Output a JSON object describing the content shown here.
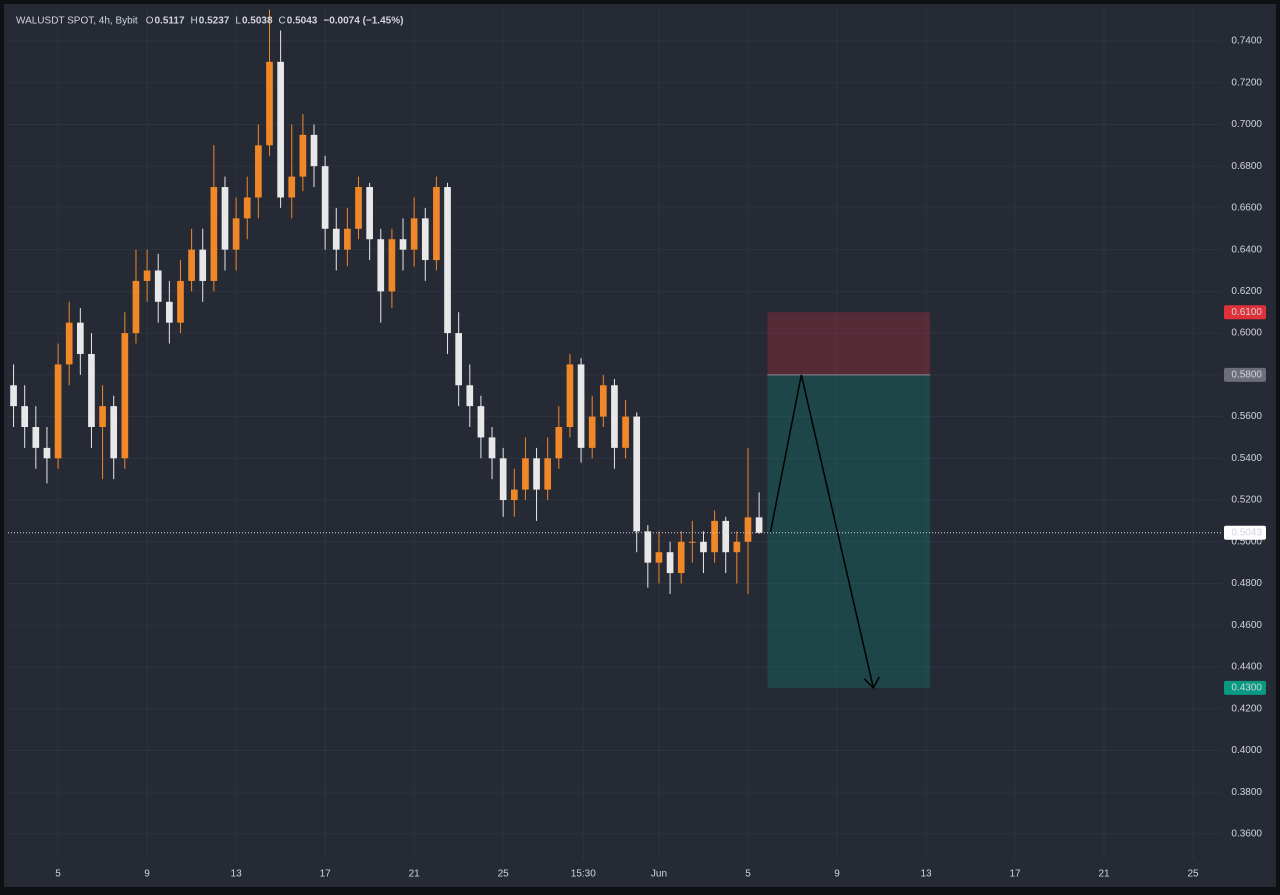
{
  "chart_data": {
    "type": "candlestick",
    "title": "WALUSDT SPOT, 4h, Bybit",
    "header": [
      {
        "label": "O",
        "value": "0.5117"
      },
      {
        "label": "H",
        "value": "0.5237"
      },
      {
        "label": "L",
        "value": "0.5038"
      },
      {
        "label": "C",
        "value": "0.5043"
      }
    ],
    "change": "−0.0074 (−1.45%)",
    "up_color": "#f0882a",
    "down_color": "#e8e8e8",
    "x": [
      3,
      3.5,
      4,
      4.5,
      5,
      5.5,
      6,
      6.5,
      7,
      7.5,
      8,
      8.5,
      9,
      9.5,
      10,
      10.5,
      11,
      11.5,
      12,
      12.5,
      13,
      13.5,
      14,
      14.5,
      15,
      15.5,
      16,
      16.5,
      17,
      17.5,
      18,
      18.5,
      19,
      19.5,
      20,
      20.5,
      21,
      21.5,
      22,
      22.5,
      23,
      23.5,
      24,
      24.5,
      25,
      25.5,
      26,
      26.5,
      27,
      27.5,
      28,
      28.5,
      29,
      29.5,
      30,
      30.5,
      31,
      31.5,
      32,
      32.5,
      33,
      33.5,
      34,
      34.5,
      35,
      35.5,
      36,
      36.5
    ],
    "open": [
      0.575,
      0.565,
      0.555,
      0.545,
      0.54,
      0.585,
      0.605,
      0.59,
      0.555,
      0.565,
      0.54,
      0.6,
      0.625,
      0.63,
      0.615,
      0.605,
      0.625,
      0.64,
      0.625,
      0.67,
      0.64,
      0.655,
      0.665,
      0.69,
      0.73,
      0.665,
      0.675,
      0.695,
      0.68,
      0.65,
      0.64,
      0.65,
      0.67,
      0.645,
      0.62,
      0.645,
      0.64,
      0.655,
      0.635,
      0.67,
      0.6,
      0.575,
      0.565,
      0.55,
      0.54,
      0.52,
      0.525,
      0.54,
      0.525,
      0.54,
      0.555,
      0.585,
      0.545,
      0.56,
      0.575,
      0.545,
      0.56,
      0.505,
      0.49,
      0.495,
      0.485,
      0.5,
      0.5,
      0.495,
      0.51,
      0.495,
      0.5,
      0.5117
    ],
    "high": [
      0.585,
      0.575,
      0.565,
      0.555,
      0.595,
      0.615,
      0.612,
      0.6,
      0.575,
      0.57,
      0.61,
      0.64,
      0.64,
      0.638,
      0.625,
      0.635,
      0.65,
      0.65,
      0.69,
      0.675,
      0.665,
      0.675,
      0.7,
      0.755,
      0.745,
      0.7,
      0.705,
      0.7,
      0.685,
      0.66,
      0.66,
      0.675,
      0.672,
      0.65,
      0.65,
      0.655,
      0.665,
      0.66,
      0.675,
      0.672,
      0.61,
      0.585,
      0.57,
      0.555,
      0.545,
      0.535,
      0.55,
      0.545,
      0.55,
      0.565,
      0.59,
      0.588,
      0.57,
      0.58,
      0.578,
      0.568,
      0.562,
      0.508,
      0.505,
      0.5,
      0.505,
      0.51,
      0.505,
      0.515,
      0.512,
      0.505,
      0.545,
      0.5237
    ],
    "low": [
      0.555,
      0.545,
      0.535,
      0.528,
      0.535,
      0.575,
      0.58,
      0.545,
      0.53,
      0.53,
      0.535,
      0.595,
      0.615,
      0.605,
      0.595,
      0.6,
      0.62,
      0.615,
      0.62,
      0.63,
      0.63,
      0.645,
      0.655,
      0.685,
      0.66,
      0.655,
      0.668,
      0.67,
      0.64,
      0.63,
      0.632,
      0.645,
      0.635,
      0.605,
      0.612,
      0.63,
      0.632,
      0.625,
      0.63,
      0.59,
      0.565,
      0.555,
      0.54,
      0.53,
      0.512,
      0.512,
      0.52,
      0.51,
      0.52,
      0.535,
      0.55,
      0.538,
      0.54,
      0.555,
      0.535,
      0.54,
      0.495,
      0.478,
      0.48,
      0.475,
      0.48,
      0.49,
      0.485,
      0.49,
      0.485,
      0.48,
      0.475,
      0.5038
    ],
    "close": [
      0.565,
      0.555,
      0.545,
      0.54,
      0.585,
      0.605,
      0.59,
      0.555,
      0.565,
      0.54,
      0.6,
      0.625,
      0.63,
      0.615,
      0.605,
      0.625,
      0.64,
      0.625,
      0.67,
      0.64,
      0.655,
      0.665,
      0.69,
      0.73,
      0.665,
      0.675,
      0.695,
      0.68,
      0.65,
      0.64,
      0.65,
      0.67,
      0.645,
      0.62,
      0.645,
      0.64,
      0.655,
      0.635,
      0.67,
      0.6,
      0.575,
      0.565,
      0.55,
      0.54,
      0.52,
      0.525,
      0.54,
      0.525,
      0.54,
      0.555,
      0.585,
      0.545,
      0.56,
      0.575,
      0.545,
      0.56,
      0.505,
      0.49,
      0.495,
      0.485,
      0.5,
      0.5,
      0.495,
      0.51,
      0.495,
      0.5,
      0.5117,
      0.5043
    ],
    "xlim": [
      2.75,
      57.3
    ],
    "xticks": [
      5,
      9,
      13,
      17,
      21,
      25,
      {
        "value": 28.6,
        "label": "15:30"
      },
      {
        "value": 32,
        "label": "Jun"
      },
      {
        "value": 36,
        "label": "5"
      },
      {
        "value": 40,
        "label": "9"
      },
      {
        "value": 44,
        "label": "13"
      },
      {
        "value": 48,
        "label": "17"
      },
      {
        "value": 52,
        "label": "21"
      },
      {
        "value": 56,
        "label": "25"
      }
    ],
    "ylim": [
      0.3475,
      0.7558
    ],
    "yticks": [
      {
        "value": 0.36,
        "label": "0.3600"
      },
      {
        "value": 0.38,
        "label": "0.3800"
      },
      {
        "value": 0.4,
        "label": "0.4000"
      },
      {
        "value": 0.42,
        "label": "0.4200"
      },
      {
        "value": 0.44,
        "label": "0.4400"
      },
      {
        "value": 0.46,
        "label": "0.4600"
      },
      {
        "value": 0.48,
        "label": "0.4800"
      },
      {
        "value": 0.5,
        "label": "0.5000"
      },
      {
        "value": 0.52,
        "label": "0.5200"
      },
      {
        "value": 0.54,
        "label": "0.5400"
      },
      {
        "value": 0.56,
        "label": "0.5600"
      },
      {
        "value": 0.58,
        "label": "0.5800"
      },
      {
        "value": 0.6,
        "label": "0.6000"
      },
      {
        "value": 0.62,
        "label": "0.6200"
      },
      {
        "value": 0.64,
        "label": "0.6400"
      },
      {
        "value": 0.66,
        "label": "0.6600"
      },
      {
        "value": 0.68,
        "label": "0.6800"
      },
      {
        "value": 0.7,
        "label": "0.7000"
      },
      {
        "value": 0.72,
        "label": "0.7200"
      },
      {
        "value": 0.74,
        "label": "0.7400"
      }
    ],
    "grid": true,
    "last_price": {
      "value": 0.5043,
      "label": "0.5043"
    },
    "position": {
      "x_start": 36.87,
      "x_end": 44.19,
      "stop": {
        "value": 0.61,
        "label": "0.6100",
        "color": "#e0303a"
      },
      "entry": {
        "value": 0.58,
        "label": "0.5800",
        "color": "#6c6f78"
      },
      "target": {
        "value": 0.43,
        "label": "0.4300",
        "color": "#089981"
      }
    }
  }
}
